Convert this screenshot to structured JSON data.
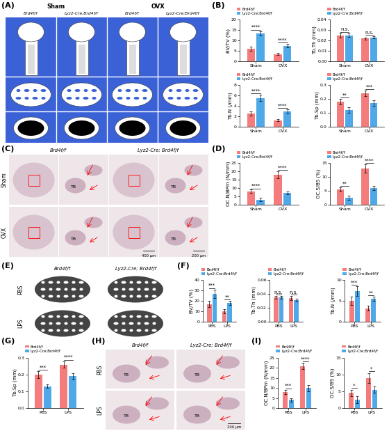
{
  "chart_data": [
    {
      "type": "bar",
      "label": "(B)",
      "ylabel": "BV/TV (%)",
      "categories": [
        "Sham",
        "OVX"
      ],
      "series": [
        {
          "name": "Brd4f/f",
          "color": "#F47C7C",
          "values": [
            6.0,
            3.5
          ],
          "errors": [
            0.9,
            0.4
          ]
        },
        {
          "name": "Lyz2-Cre;Brd4f/f",
          "color": "#4FA8E8",
          "values": [
            13.5,
            7.5
          ],
          "errors": [
            1.0,
            0.8
          ]
        }
      ],
      "annotations": [
        "****",
        "****"
      ],
      "ylim": [
        0,
        20
      ],
      "yticks": [
        0,
        5,
        10,
        15,
        20
      ],
      "legend": "lower left"
    },
    {
      "type": "bar",
      "ylabel": "Tb.Th (mm)",
      "categories": [
        "Sham",
        "OVX"
      ],
      "series": [
        {
          "name": "Brd4f/f",
          "color": "#F47C7C",
          "values": [
            0.025,
            0.022
          ],
          "errors": [
            0.002,
            0.001
          ]
        },
        {
          "name": "Lyz2-Cre;Brd4f/f",
          "color": "#4FA8E8",
          "values": [
            0.025,
            0.023
          ],
          "errors": [
            0.0015,
            0.001
          ]
        }
      ],
      "annotations": [
        "n.s.",
        "n.s."
      ],
      "ylim": [
        0,
        0.04
      ],
      "yticks": [
        {
          "value": 0,
          "label": "0.00"
        },
        0.01,
        0.02,
        0.03,
        0.04
      ],
      "legend": "lower left"
    },
    {
      "type": "bar",
      "ylabel": "Tb.N (/mm)",
      "categories": [
        "Sham",
        "OVX"
      ],
      "series": [
        {
          "name": "Brd4f/f",
          "color": "#F47C7C",
          "values": [
            2.5,
            1.2
          ],
          "errors": [
            0.4,
            0.2
          ]
        },
        {
          "name": "Lyz2-Cre;Brd4f/f",
          "color": "#4FA8E8",
          "values": [
            5.5,
            2.9
          ],
          "errors": [
            0.6,
            0.4
          ]
        }
      ],
      "annotations": [
        "****",
        "****"
      ],
      "ylim": [
        0,
        8
      ],
      "yticks": [
        0,
        2,
        4,
        6,
        8
      ],
      "legend": "lower left"
    },
    {
      "type": "bar",
      "ylabel": "Tb.Sp (mm)",
      "categories": [
        "Sham",
        "OVX"
      ],
      "series": [
        {
          "name": "Brd4f/f",
          "color": "#F47C7C",
          "values": [
            0.18,
            0.24
          ],
          "errors": [
            0.02,
            0.02
          ]
        },
        {
          "name": "Lyz2-Cre;Brd4f/f",
          "color": "#4FA8E8",
          "values": [
            0.12,
            0.17
          ],
          "errors": [
            0.02,
            0.02
          ]
        }
      ],
      "annotations": [
        "**",
        "***"
      ],
      "ylim": [
        0,
        0.3
      ],
      "yticks": [
        {
          "value": 0,
          "label": "0.0"
        },
        0.1,
        0.2,
        0.3
      ],
      "legend": "lower left"
    },
    {
      "type": "bar",
      "label": "(D)",
      "ylabel": "OC.N/BPm (N/mm)",
      "categories": [
        "Sham",
        "OVX"
      ],
      "series": [
        {
          "name": "Brd4f/f",
          "color": "#F47C7C",
          "values": [
            8,
            18
          ],
          "errors": [
            1.0,
            2.0
          ]
        },
        {
          "name": "Lyz2-Cre;Brd4f/f",
          "color": "#4FA8E8",
          "values": [
            3,
            7
          ],
          "errors": [
            1.0,
            0.8
          ]
        }
      ],
      "annotations": [
        "****",
        "****"
      ],
      "ylim": [
        0,
        25
      ],
      "yticks": [
        0,
        5,
        10,
        15,
        20,
        25
      ],
      "legend": "lower left"
    },
    {
      "type": "bar",
      "ylabel": "OC.S/BS (%)",
      "categories": [
        "Sham",
        "OVX"
      ],
      "series": [
        {
          "name": "Brd4f/f",
          "color": "#F47C7C",
          "values": [
            5.5,
            13
          ],
          "errors": [
            0.8,
            1.5
          ]
        },
        {
          "name": "Lyz2-Cre;Brd4f/f",
          "color": "#4FA8E8",
          "values": [
            2.5,
            6
          ],
          "errors": [
            0.8,
            0.8
          ]
        }
      ],
      "annotations": [
        "**",
        "****"
      ],
      "ylim": [
        0,
        15
      ],
      "yticks": [
        0,
        5,
        10,
        15
      ],
      "legend": "lower left"
    },
    {
      "type": "bar",
      "label": "(F)",
      "ylabel": "BV/TV (%)",
      "categories": [
        "PBS",
        "LPS"
      ],
      "series": [
        {
          "name": "Brd4f/f",
          "color": "#F47C7C",
          "values": [
            17,
            10
          ],
          "errors": [
            3,
            2
          ]
        },
        {
          "name": "Lyz2-Cre;Brd4f/f",
          "color": "#4FA8E8",
          "values": [
            27,
            18
          ],
          "errors": [
            4,
            2
          ]
        }
      ],
      "annotations": [
        "***",
        "**"
      ],
      "ylim": [
        0,
        40
      ],
      "yticks": [
        0,
        10,
        20,
        30,
        40
      ],
      "legend": "lower left"
    },
    {
      "type": "bar",
      "ylabel": "Tb.Th (mm)",
      "categories": [
        "PBS",
        "LPS"
      ],
      "series": [
        {
          "name": "Brd4f/f",
          "color": "#F47C7C",
          "values": [
            0.035,
            0.034
          ],
          "errors": [
            0.002,
            0.003
          ]
        },
        {
          "name": "Lyz2-Cre;Brd4f/f",
          "color": "#4FA8E8",
          "values": [
            0.035,
            0.031
          ],
          "errors": [
            0.002,
            0.002
          ]
        }
      ],
      "annotations": [
        "n.s.",
        "n.s."
      ],
      "ylim": [
        0,
        0.06
      ],
      "yticks": [
        {
          "value": 0,
          "label": "0.00"
        },
        0.02,
        0.04,
        0.06
      ],
      "legend": "lower left"
    },
    {
      "type": "bar",
      "ylabel": "Tb.N (/mm)",
      "categories": [
        "PBS",
        "LPS"
      ],
      "series": [
        {
          "name": "Brd4f/f",
          "color": "#F47C7C",
          "values": [
            5,
            3.2
          ],
          "errors": [
            1.0,
            0.6
          ]
        },
        {
          "name": "Lyz2-Cre;Brd4f/f",
          "color": "#4FA8E8",
          "values": [
            7.3,
            5.5
          ],
          "errors": [
            1.2,
            0.5
          ]
        }
      ],
      "annotations": [
        "***",
        "**"
      ],
      "ylim": [
        0,
        10
      ],
      "yticks": [
        0,
        5,
        10
      ],
      "legend": "lower left"
    },
    {
      "type": "bar",
      "label": "(G)",
      "ylabel": "Tb.Sp (mm)",
      "categories": [
        "PBS",
        "LPS"
      ],
      "series": [
        {
          "name": "Brd4f/f",
          "color": "#F47C7C",
          "values": [
            0.2,
            0.26
          ],
          "errors": [
            0.02,
            0.02
          ]
        },
        {
          "name": "Lyz2-Cre;Brd4f/f",
          "color": "#4FA8E8",
          "values": [
            0.13,
            0.19
          ],
          "errors": [
            0.01,
            0.02
          ]
        }
      ],
      "annotations": [
        "***",
        "****"
      ],
      "ylim": [
        0,
        0.3
      ],
      "yticks": [
        {
          "value": 0,
          "label": "0.0"
        },
        0.1,
        0.2,
        0.3
      ],
      "legend": "lower left"
    },
    {
      "type": "bar",
      "label": "(I)",
      "ylabel": "OC.N/BPm (N/mm)",
      "categories": [
        "PBS",
        "LPS"
      ],
      "series": [
        {
          "name": "Brd4f/f",
          "color": "#F47C7C",
          "values": [
            8,
            21
          ],
          "errors": [
            1.0,
            1.5
          ]
        },
        {
          "name": "Lyz2-Cre;Brd4f/f",
          "color": "#4FA8E8",
          "values": [
            4,
            10
          ],
          "errors": [
            1.0,
            1.5
          ]
        }
      ],
      "annotations": [
        "***",
        "****"
      ],
      "ylim": [
        0,
        25
      ],
      "yticks": [
        0,
        5,
        10,
        15,
        20,
        25
      ],
      "legend": "lower left"
    },
    {
      "type": "bar",
      "ylabel": "OC.S/BS (%)",
      "categories": [
        "PBS",
        "LPS"
      ],
      "series": [
        {
          "name": "Brd4f/f",
          "color": "#F47C7C",
          "values": [
            4.5,
            9
          ],
          "errors": [
            1.0,
            1.5
          ]
        },
        {
          "name": "Lyz2-Cre;Brd4f/f",
          "color": "#4FA8E8",
          "values": [
            2.5,
            5.5
          ],
          "errors": [
            1.0,
            1.0
          ]
        }
      ],
      "annotations": [
        "*",
        "*"
      ],
      "ylim": [
        0,
        15
      ],
      "yticks": [
        0,
        5,
        10,
        15
      ],
      "legend": "lower left"
    }
  ],
  "image_panels": [
    {
      "label": "(A)",
      "column_groups": [
        "Sham",
        "OVX"
      ],
      "columns": [
        "Brd4f/f",
        "Lyz2-Cre;Brd4f/f",
        "Brd4f/f",
        "Lyz2-Cre;Brd4f/f"
      ]
    },
    {
      "label": "(C)",
      "columns": [
        "Brd4f/f",
        "Lyz2-Cre; Brd4f/f"
      ],
      "rows": [
        "Sham",
        "OVX"
      ],
      "mark": "TB",
      "scale_bars": [
        "400 μm",
        "200 μm"
      ]
    },
    {
      "label": "(E)",
      "columns": [
        "Brd4f/f",
        "Lyz2-Cre; Brd4f/f"
      ],
      "rows": [
        "PBS",
        "LPS"
      ]
    },
    {
      "label": "(H)",
      "columns": [
        "Brd4f/f",
        "Lyz2-Cre; Brd4f/f"
      ],
      "rows": [
        "PBS",
        "LPS"
      ],
      "mark": "TB",
      "scale_bars": [
        "200 μm"
      ]
    }
  ]
}
